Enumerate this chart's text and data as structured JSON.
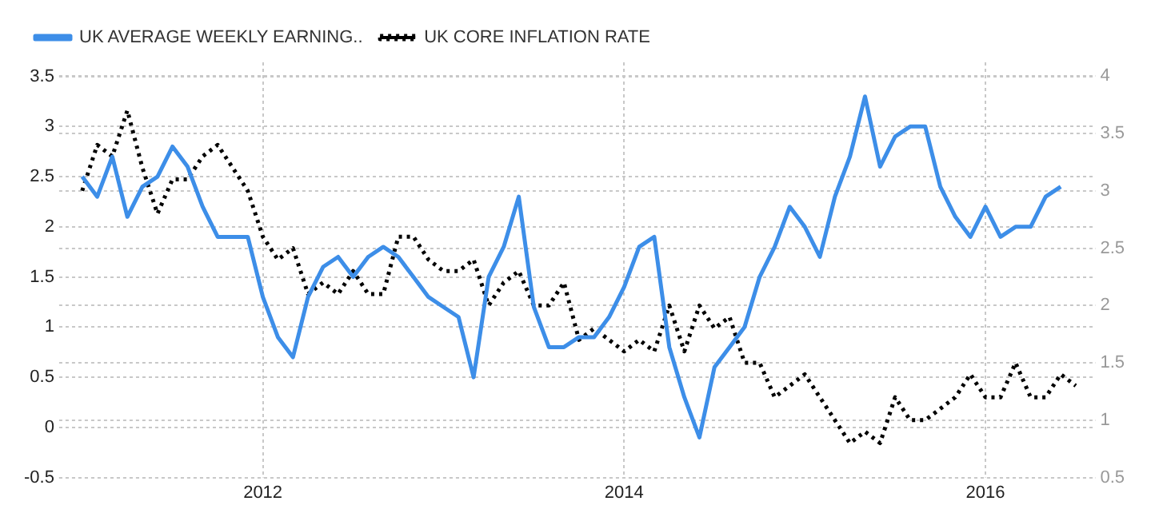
{
  "chart_data": {
    "type": "line",
    "x": [
      "2011-01",
      "2011-02",
      "2011-03",
      "2011-04",
      "2011-05",
      "2011-06",
      "2011-07",
      "2011-08",
      "2011-09",
      "2011-10",
      "2011-11",
      "2011-12",
      "2012-01",
      "2012-02",
      "2012-03",
      "2012-04",
      "2012-05",
      "2012-06",
      "2012-07",
      "2012-08",
      "2012-09",
      "2012-10",
      "2012-11",
      "2012-12",
      "2013-01",
      "2013-02",
      "2013-03",
      "2013-04",
      "2013-05",
      "2013-06",
      "2013-07",
      "2013-08",
      "2013-09",
      "2013-10",
      "2013-11",
      "2013-12",
      "2014-01",
      "2014-02",
      "2014-03",
      "2014-04",
      "2014-05",
      "2014-06",
      "2014-07",
      "2014-08",
      "2014-09",
      "2014-10",
      "2014-11",
      "2014-12",
      "2015-01",
      "2015-02",
      "2015-03",
      "2015-04",
      "2015-05",
      "2015-06",
      "2015-07",
      "2015-08",
      "2015-09",
      "2015-10",
      "2015-11",
      "2015-12",
      "2016-01",
      "2016-02",
      "2016-03",
      "2016-04",
      "2016-05",
      "2016-06",
      "2016-07"
    ],
    "series": [
      {
        "name": "UK AVERAGE WEEKLY EARNING..",
        "color": "#3d8ee8",
        "line_style": "solid",
        "values": [
          2.5,
          2.3,
          2.7,
          2.1,
          2.4,
          2.5,
          2.8,
          2.6,
          2.2,
          1.9,
          1.9,
          1.9,
          1.3,
          0.9,
          0.7,
          1.3,
          1.6,
          1.7,
          1.5,
          1.7,
          1.8,
          1.7,
          1.5,
          1.3,
          1.2,
          1.1,
          0.5,
          1.5,
          1.8,
          2.3,
          1.2,
          0.8,
          0.8,
          0.9,
          0.9,
          1.1,
          1.4,
          1.8,
          1.9,
          0.8,
          0.3,
          -0.1,
          0.6,
          0.8,
          1.0,
          1.5,
          1.8,
          2.2,
          2.0,
          1.7,
          2.3,
          2.7,
          3.3,
          2.6,
          2.9,
          3.0,
          3.0,
          2.4,
          2.1,
          1.9,
          2.2,
          1.9,
          2.0,
          2.0,
          2.3,
          2.4,
          null
        ]
      },
      {
        "name": "UK CORE INFLATION RATE",
        "color": "#000000",
        "line_style": "dotted",
        "axis": "y2",
        "values": [
          3.0,
          3.4,
          3.3,
          3.7,
          3.2,
          2.8,
          3.1,
          3.1,
          3.3,
          3.4,
          3.2,
          3.0,
          2.6,
          2.4,
          2.5,
          2.1,
          2.2,
          2.1,
          2.3,
          2.1,
          2.1,
          2.6,
          2.6,
          2.4,
          2.3,
          2.3,
          2.4,
          2.0,
          2.2,
          2.3,
          2.0,
          2.0,
          2.2,
          1.7,
          1.8,
          1.7,
          1.6,
          1.7,
          1.6,
          2.0,
          1.6,
          2.0,
          1.8,
          1.9,
          1.5,
          1.5,
          1.2,
          1.3,
          1.4,
          1.2,
          1.0,
          0.8,
          0.9,
          0.8,
          1.2,
          1.0,
          1.0,
          1.1,
          1.2,
          1.4,
          1.2,
          1.2,
          1.5,
          1.2,
          1.2,
          1.4,
          1.3
        ]
      }
    ],
    "xlim": [
      "2010-11-15",
      "2016-08-10"
    ],
    "xticks": [
      "2012",
      "2014",
      "2016"
    ],
    "ylim": [
      -0.5,
      3.64
    ],
    "yticks": [
      -0.5,
      0,
      0.5,
      1,
      1.5,
      2,
      2.5,
      3,
      3.5
    ],
    "y2lim": [
      0.5,
      4.12
    ],
    "y2ticks": [
      0.5,
      1,
      1.5,
      2,
      2.5,
      3,
      3.5,
      4
    ],
    "grid": true,
    "legend": "top left",
    "marker": "none"
  }
}
